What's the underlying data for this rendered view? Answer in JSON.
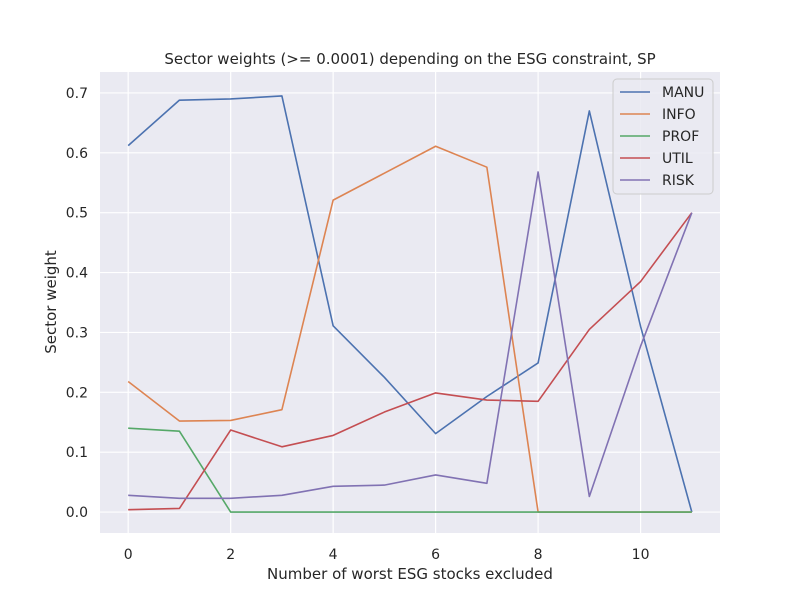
{
  "chart_data": {
    "type": "line",
    "title": "Sector weights (>= 0.0001) depending on the ESG constraint, SP",
    "xlabel": "Number of worst ESG stocks excluded",
    "ylabel": "Sector weight",
    "x": [
      0,
      1,
      2,
      3,
      4,
      5,
      6,
      7,
      8,
      9,
      10,
      11
    ],
    "xlim": [
      -0.55,
      11.55
    ],
    "ylim": [
      -0.035,
      0.735
    ],
    "xticks": [
      0,
      2,
      4,
      6,
      8,
      10
    ],
    "yticks": [
      0.0,
      0.1,
      0.2,
      0.3,
      0.4,
      0.5,
      0.6,
      0.7
    ],
    "ytick_labels": [
      "0.0",
      "0.1",
      "0.2",
      "0.3",
      "0.4",
      "0.5",
      "0.6",
      "0.7"
    ],
    "grid": true,
    "legend_position": "top-right",
    "background_color": "#EAEAF2",
    "series": [
      {
        "name": "MANU",
        "color": "#4C72B0",
        "values": [
          0.612,
          0.688,
          0.69,
          0.695,
          0.311,
          0.225,
          0.131,
          0.193,
          0.249,
          0.67,
          0.31,
          0.0
        ]
      },
      {
        "name": "INFO",
        "color": "#DD8452",
        "values": [
          0.218,
          0.152,
          0.153,
          0.171,
          0.521,
          0.566,
          0.611,
          0.576,
          0.0,
          0.0,
          0.0,
          0.0
        ]
      },
      {
        "name": "PROF",
        "color": "#55A868",
        "values": [
          0.14,
          0.135,
          0.0,
          0.0,
          0.0,
          0.0,
          0.0,
          0.0,
          0.0,
          0.0,
          0.0,
          0.0
        ]
      },
      {
        "name": "UTIL",
        "color": "#C44E52",
        "values": [
          0.004,
          0.006,
          0.137,
          0.109,
          0.128,
          0.167,
          0.199,
          0.187,
          0.185,
          0.305,
          0.385,
          0.5
        ]
      },
      {
        "name": "RISK",
        "color": "#8172B3",
        "values": [
          0.028,
          0.023,
          0.023,
          0.028,
          0.043,
          0.045,
          0.062,
          0.048,
          0.568,
          0.026,
          0.277,
          0.5
        ]
      }
    ]
  }
}
